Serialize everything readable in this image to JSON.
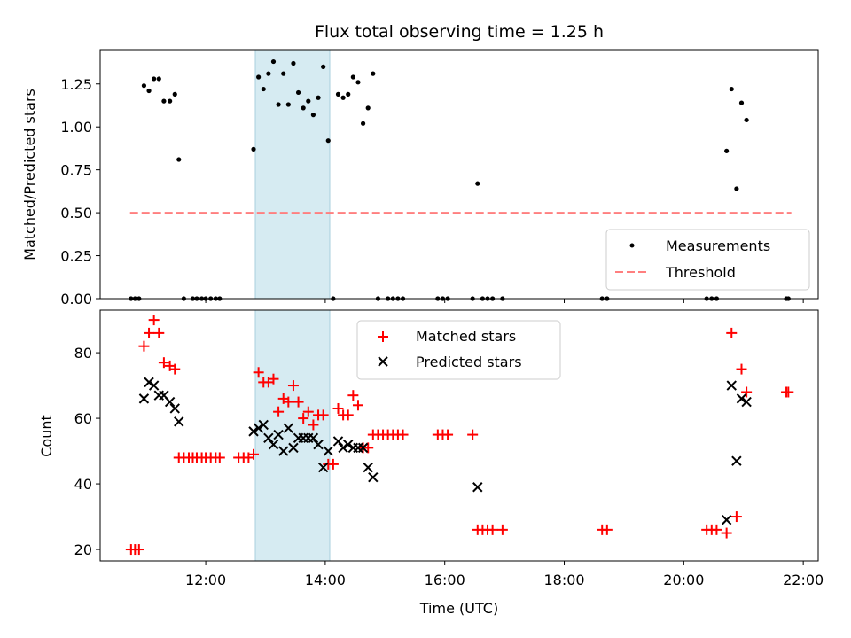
{
  "chart_data": [
    {
      "type": "scatter",
      "title": "Flux total observing time = 1.25 h",
      "xlabel": "",
      "ylabel": "Matched/Predicted stars",
      "x_unit": "hours UTC",
      "xlim": [
        "10:14",
        "22:15"
      ],
      "ylim": [
        0,
        1.45
      ],
      "y_ticks": [
        "0.00",
        "0.25",
        "0.50",
        "0.75",
        "1.00",
        "1.25"
      ],
      "shaded_region": {
        "x": [
          "12:48",
          "14:03"
        ],
        "color": "#add8e6"
      },
      "legend": {
        "placement": "lower-right",
        "entries": [
          "Measurements",
          "Threshold"
        ]
      },
      "threshold": {
        "name": "Threshold",
        "x": [
          "10:44",
          "21:48"
        ],
        "y": 0.5,
        "color": "#ff7f7f",
        "style": "dashed"
      },
      "series": [
        {
          "name": "Measurements",
          "color": "#000000",
          "marker": "dot",
          "points": [
            [
              "10:45",
              0
            ],
            [
              "10:49",
              0
            ],
            [
              "10:53",
              0
            ],
            [
              "10:58",
              1.24
            ],
            [
              "11:03",
              1.21
            ],
            [
              "11:08",
              1.28
            ],
            [
              "11:13",
              1.28
            ],
            [
              "11:18",
              1.15
            ],
            [
              "11:24",
              1.15
            ],
            [
              "11:29",
              1.19
            ],
            [
              "11:33",
              0.81
            ],
            [
              "11:38",
              0
            ],
            [
              "11:47",
              0
            ],
            [
              "11:51",
              0
            ],
            [
              "11:56",
              0
            ],
            [
              "12:00",
              0
            ],
            [
              "12:05",
              0
            ],
            [
              "12:10",
              0
            ],
            [
              "12:14",
              0
            ],
            [
              "12:48",
              0.87
            ],
            [
              "12:53",
              1.29
            ],
            [
              "12:58",
              1.22
            ],
            [
              "13:03",
              1.31
            ],
            [
              "13:08",
              1.38
            ],
            [
              "13:13",
              1.13
            ],
            [
              "13:18",
              1.31
            ],
            [
              "13:23",
              1.13
            ],
            [
              "13:28",
              1.37
            ],
            [
              "13:33",
              1.2
            ],
            [
              "13:38",
              1.11
            ],
            [
              "13:43",
              1.15
            ],
            [
              "13:48",
              1.07
            ],
            [
              "13:53",
              1.17
            ],
            [
              "13:58",
              1.35
            ],
            [
              "14:03",
              0.92
            ],
            [
              "14:08",
              0
            ],
            [
              "14:13",
              1.19
            ],
            [
              "14:18",
              1.17
            ],
            [
              "14:23",
              1.19
            ],
            [
              "14:28",
              1.29
            ],
            [
              "14:33",
              1.26
            ],
            [
              "14:38",
              1.02
            ],
            [
              "14:43",
              1.11
            ],
            [
              "14:48",
              1.31
            ],
            [
              "14:53",
              0
            ],
            [
              "15:03",
              0
            ],
            [
              "15:08",
              0
            ],
            [
              "15:13",
              0
            ],
            [
              "15:18",
              0
            ],
            [
              "15:53",
              0
            ],
            [
              "15:58",
              0
            ],
            [
              "16:03",
              0
            ],
            [
              "16:28",
              0
            ],
            [
              "16:33",
              0.67
            ],
            [
              "16:38",
              0
            ],
            [
              "16:43",
              0
            ],
            [
              "16:48",
              0
            ],
            [
              "16:58",
              0
            ],
            [
              "18:38",
              0
            ],
            [
              "18:43",
              0
            ],
            [
              "20:23",
              0
            ],
            [
              "20:28",
              0
            ],
            [
              "20:33",
              0
            ],
            [
              "20:43",
              0.86
            ],
            [
              "20:48",
              1.22
            ],
            [
              "20:53",
              0.64
            ],
            [
              "20:58",
              1.14
            ],
            [
              "21:03",
              1.04
            ],
            [
              "21:43",
              0
            ],
            [
              "21:45",
              0
            ]
          ]
        }
      ]
    },
    {
      "type": "scatter",
      "title": "",
      "xlabel": "Time (UTC)",
      "ylabel": "Count",
      "x_unit": "hours UTC",
      "xlim": [
        "10:14",
        "22:15"
      ],
      "ylim": [
        16.5,
        93
      ],
      "y_ticks": [
        "20",
        "40",
        "60",
        "80"
      ],
      "x_ticks": [
        "12:00",
        "14:00",
        "16:00",
        "18:00",
        "20:00",
        "22:00"
      ],
      "shaded_region": {
        "x": [
          "12:48",
          "14:03"
        ],
        "color": "#add8e6"
      },
      "legend": {
        "placement": "top-center",
        "entries": [
          "Matched stars",
          "Predicted stars"
        ]
      },
      "series": [
        {
          "name": "Matched stars",
          "color": "#ff0000",
          "marker": "plus",
          "points": [
            [
              "10:45",
              20
            ],
            [
              "10:49",
              20
            ],
            [
              "10:53",
              20
            ],
            [
              "10:58",
              82
            ],
            [
              "11:03",
              86
            ],
            [
              "11:08",
              90
            ],
            [
              "11:13",
              86
            ],
            [
              "11:18",
              77
            ],
            [
              "11:24",
              76
            ],
            [
              "11:29",
              75
            ],
            [
              "11:33",
              48
            ],
            [
              "11:38",
              48
            ],
            [
              "11:43",
              48
            ],
            [
              "11:47",
              48
            ],
            [
              "11:51",
              48
            ],
            [
              "11:56",
              48
            ],
            [
              "12:00",
              48
            ],
            [
              "12:05",
              48
            ],
            [
              "12:10",
              48
            ],
            [
              "12:14",
              48
            ],
            [
              "12:33",
              48
            ],
            [
              "12:38",
              48
            ],
            [
              "12:43",
              48
            ],
            [
              "12:48",
              49
            ],
            [
              "12:53",
              74
            ],
            [
              "12:58",
              71
            ],
            [
              "13:03",
              71
            ],
            [
              "13:08",
              72
            ],
            [
              "13:13",
              62
            ],
            [
              "13:18",
              66
            ],
            [
              "13:23",
              65
            ],
            [
              "13:28",
              70
            ],
            [
              "13:33",
              65
            ],
            [
              "13:38",
              60
            ],
            [
              "13:43",
              62
            ],
            [
              "13:48",
              58
            ],
            [
              "13:53",
              61
            ],
            [
              "13:58",
              61
            ],
            [
              "14:03",
              46
            ],
            [
              "14:08",
              46
            ],
            [
              "14:13",
              63
            ],
            [
              "14:18",
              61
            ],
            [
              "14:23",
              61
            ],
            [
              "14:28",
              67
            ],
            [
              "14:33",
              64
            ],
            [
              "14:38",
              51
            ],
            [
              "14:43",
              51
            ],
            [
              "14:48",
              55
            ],
            [
              "14:53",
              55
            ],
            [
              "14:58",
              55
            ],
            [
              "15:03",
              55
            ],
            [
              "15:08",
              55
            ],
            [
              "15:13",
              55
            ],
            [
              "15:18",
              55
            ],
            [
              "15:53",
              55
            ],
            [
              "15:58",
              55
            ],
            [
              "16:03",
              55
            ],
            [
              "16:28",
              55
            ],
            [
              "16:33",
              26
            ],
            [
              "16:38",
              26
            ],
            [
              "16:43",
              26
            ],
            [
              "16:48",
              26
            ],
            [
              "16:58",
              26
            ],
            [
              "18:38",
              26
            ],
            [
              "18:43",
              26
            ],
            [
              "20:23",
              26
            ],
            [
              "20:28",
              26
            ],
            [
              "20:33",
              26
            ],
            [
              "20:43",
              25
            ],
            [
              "20:48",
              86
            ],
            [
              "20:53",
              30
            ],
            [
              "20:58",
              75
            ],
            [
              "21:03",
              68
            ],
            [
              "21:43",
              68
            ],
            [
              "21:45",
              68
            ]
          ]
        },
        {
          "name": "Predicted stars",
          "color": "#000000",
          "marker": "x",
          "points": [
            [
              "10:58",
              66
            ],
            [
              "11:03",
              71
            ],
            [
              "11:08",
              70
            ],
            [
              "11:13",
              67
            ],
            [
              "11:18",
              67
            ],
            [
              "11:24",
              65
            ],
            [
              "11:29",
              63
            ],
            [
              "11:33",
              59
            ],
            [
              "12:48",
              56
            ],
            [
              "12:53",
              57
            ],
            [
              "12:58",
              58
            ],
            [
              "13:03",
              54
            ],
            [
              "13:08",
              52
            ],
            [
              "13:13",
              55
            ],
            [
              "13:18",
              50
            ],
            [
              "13:23",
              57
            ],
            [
              "13:28",
              51
            ],
            [
              "13:33",
              54
            ],
            [
              "13:38",
              54
            ],
            [
              "13:43",
              54
            ],
            [
              "13:48",
              54
            ],
            [
              "13:53",
              52
            ],
            [
              "13:58",
              45
            ],
            [
              "14:03",
              50
            ],
            [
              "14:13",
              53
            ],
            [
              "14:18",
              51
            ],
            [
              "14:23",
              52
            ],
            [
              "14:28",
              51
            ],
            [
              "14:33",
              51
            ],
            [
              "14:38",
              51
            ],
            [
              "14:43",
              45
            ],
            [
              "14:48",
              42
            ],
            [
              "16:33",
              39
            ],
            [
              "20:43",
              29
            ],
            [
              "20:48",
              70
            ],
            [
              "20:53",
              47
            ],
            [
              "20:58",
              66
            ],
            [
              "21:03",
              65
            ]
          ]
        }
      ]
    }
  ]
}
